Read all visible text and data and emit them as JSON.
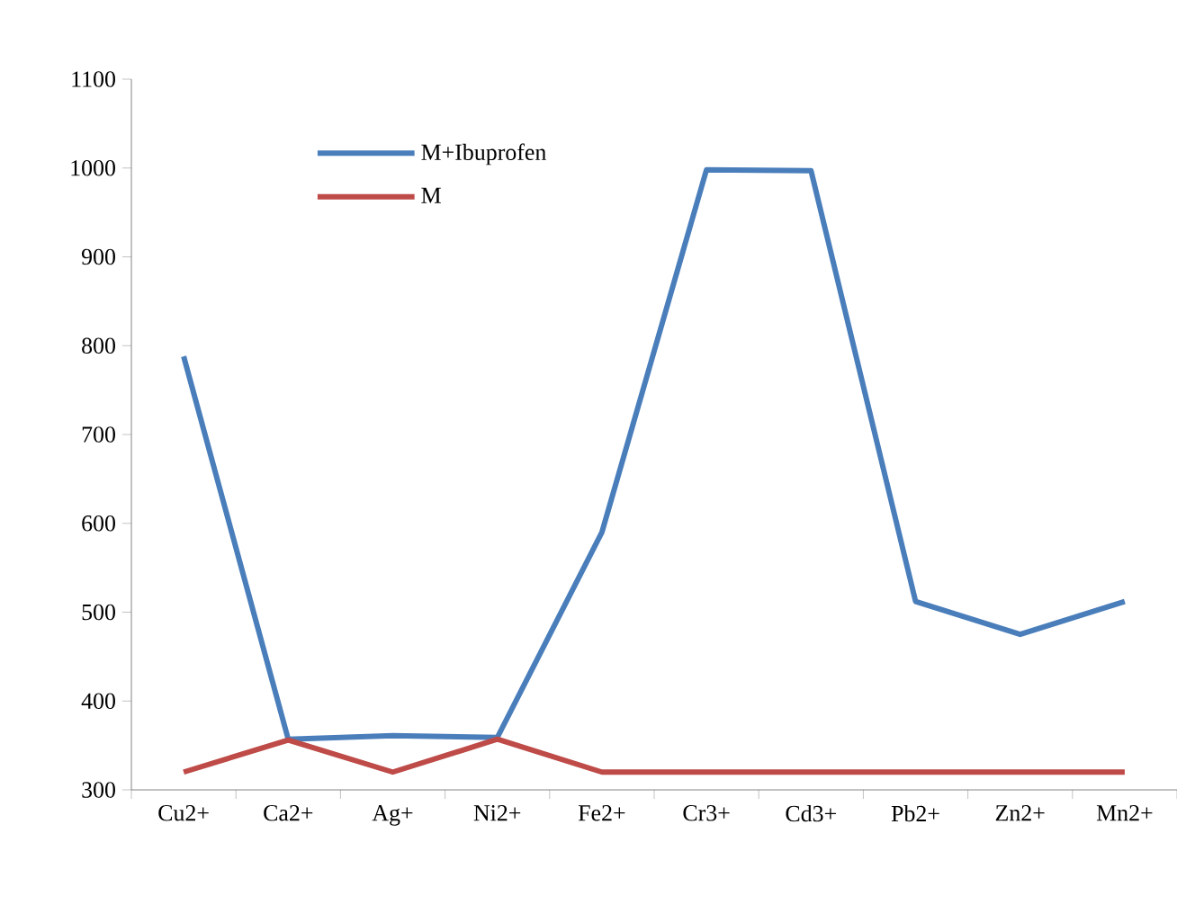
{
  "chart_data": {
    "type": "line",
    "categories": [
      "Cu2+",
      "Ca2+",
      "Ag+",
      "Ni2+",
      "Fe2+",
      "Cr3+",
      "Cd3+",
      "Pb2+",
      "Zn2+",
      "Mn2+"
    ],
    "series": [
      {
        "name": "M+Ibuprofen",
        "color": "#4a7ebb",
        "values": [
          788,
          357,
          361,
          359,
          590,
          998,
          997,
          512,
          475,
          512
        ]
      },
      {
        "name": "M",
        "color": "#be4b48",
        "values": [
          320,
          356,
          320,
          357,
          320,
          320,
          320,
          320,
          320,
          320
        ]
      }
    ],
    "ylim": [
      300,
      1100
    ],
    "yticks": [
      300,
      400,
      500,
      600,
      700,
      800,
      900,
      1000,
      1100
    ],
    "grid": false,
    "legend": "top left",
    "marker": "none",
    "line_style": "solid"
  }
}
